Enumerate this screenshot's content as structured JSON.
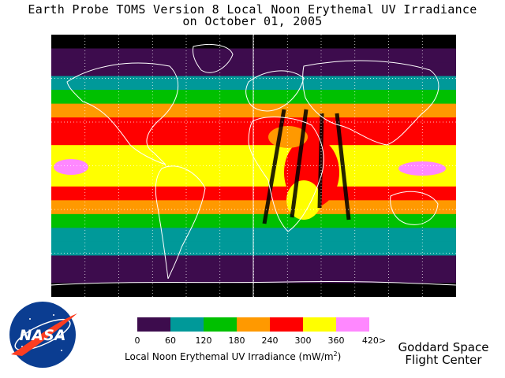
{
  "title_line1": "Earth Probe TOMS Version 8 Local Noon Erythemal UV Irradiance",
  "title_line2": "on October 01, 2005",
  "logo_text": "NASA",
  "colorbar": {
    "colors": [
      "#3d0c4d",
      "#009999",
      "#00c000",
      "#ff9900",
      "#ff0000",
      "#ffff00",
      "#ff88ff"
    ],
    "ticks": [
      "0",
      "60",
      "120",
      "180",
      "240",
      "300",
      "360",
      "420>"
    ],
    "label_prefix": "Local Noon Erythemal UV Irradiance (mW/m",
    "label_sup": "2",
    "label_suffix": ")"
  },
  "credit_line1": "Goddard Space",
  "credit_line2": "Flight Center",
  "map": {
    "projection": "equirectangular",
    "gridlines": true,
    "missing_data_color": "#000000",
    "latitude_band_colors": [
      "#000000",
      "#3d0c4d",
      "#3d0c4d",
      "#009999",
      "#00c000",
      "#ff9900",
      "#ff0000",
      "#ff0000",
      "#ffff00",
      "#ffff00",
      "#ffff00",
      "#ff0000",
      "#ff9900",
      "#00c000",
      "#009999",
      "#009999",
      "#3d0c4d",
      "#3d0c4d",
      "#000000"
    ]
  }
}
